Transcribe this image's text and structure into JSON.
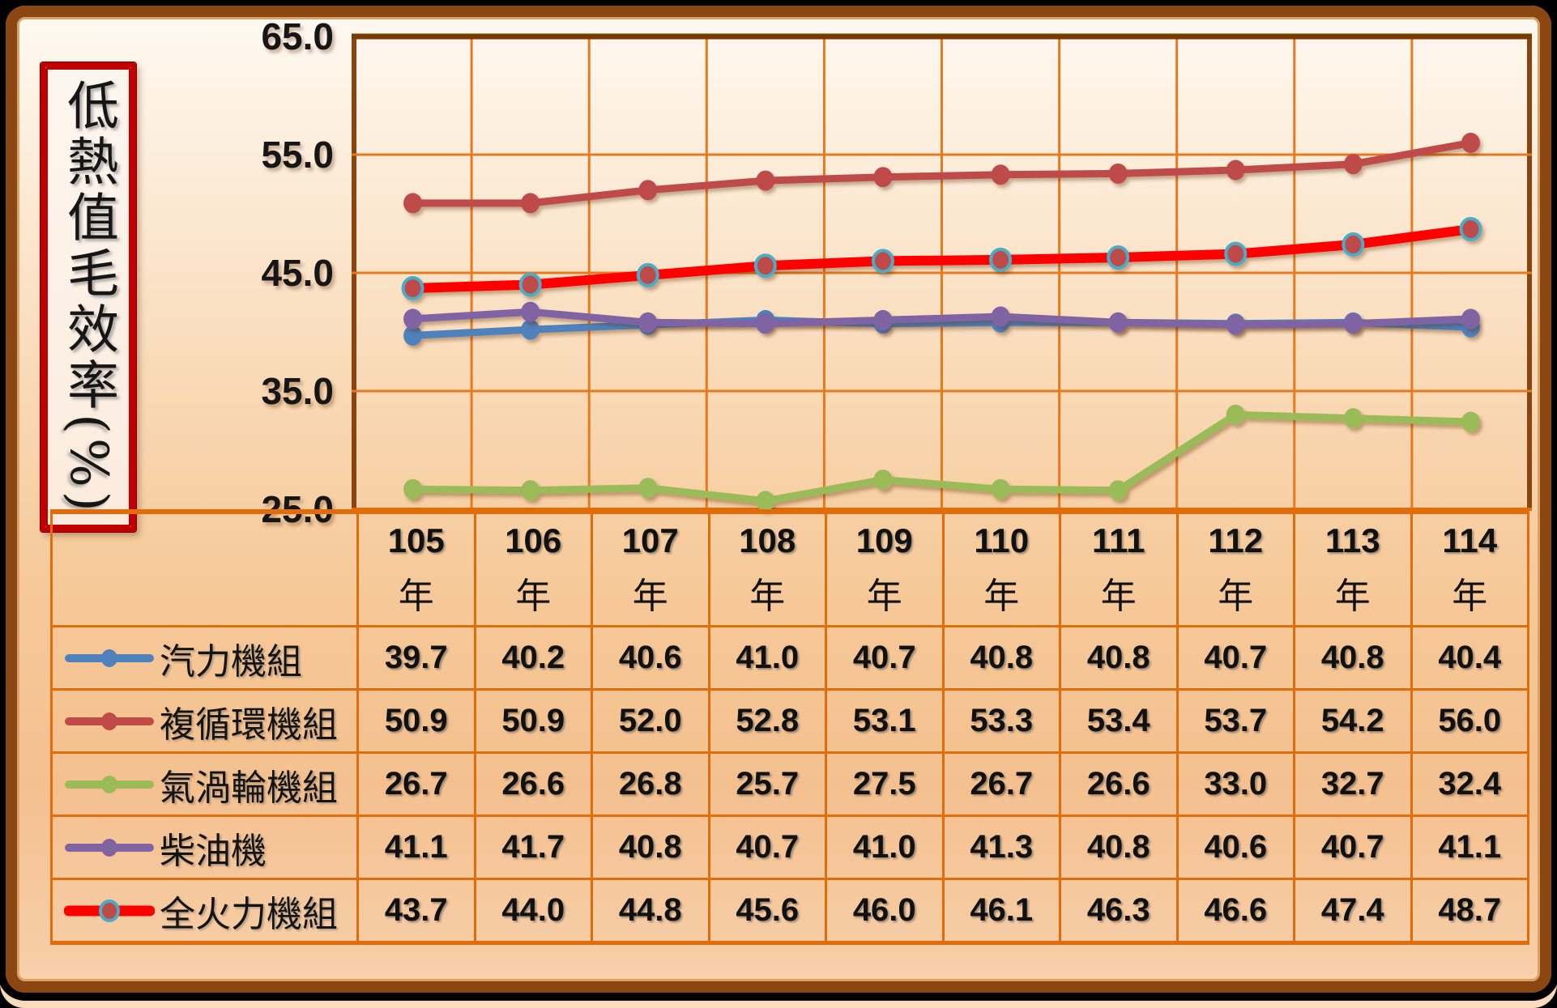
{
  "title": {
    "text": "低熱值毛效率(%)"
  },
  "colors": {
    "grid": "#E8791E",
    "table_border": "#E26B0A",
    "plot_border_dark": "#8A4410",
    "plot_border_top": "#7A3B00",
    "frame": "#8C4611",
    "title_border": "#C00000",
    "text": "#111111"
  },
  "chart_data": {
    "type": "line",
    "title": "",
    "ylabel": "低熱值毛效率(%)",
    "xlabel": "",
    "ylim": [
      25,
      65
    ],
    "yticks": [
      65,
      55,
      45,
      35,
      25
    ],
    "grid": true,
    "legend_position": "table-left-column",
    "categories": [
      "105",
      "106",
      "107",
      "108",
      "109",
      "110",
      "111",
      "112",
      "113",
      "114"
    ],
    "category_suffix": "年",
    "series": [
      {
        "name": "汽力機組",
        "key": "steam-units",
        "color": "#4F81BD",
        "line_width": 9,
        "values": [
          39.7,
          40.2,
          40.6,
          41.0,
          40.7,
          40.8,
          40.8,
          40.7,
          40.8,
          40.4
        ]
      },
      {
        "name": "複循環機組",
        "key": "combined-cycle-units",
        "color": "#BE4B48",
        "line_width": 9,
        "values": [
          50.9,
          50.9,
          52.0,
          52.8,
          53.1,
          53.3,
          53.4,
          53.7,
          54.2,
          56.0
        ]
      },
      {
        "name": "氣渦輪機組",
        "key": "gas-turbine-units",
        "color": "#9BBB59",
        "line_width": 9,
        "values": [
          26.7,
          26.6,
          26.8,
          25.7,
          27.5,
          26.7,
          26.6,
          33.0,
          32.7,
          32.4
        ]
      },
      {
        "name": "柴油機",
        "key": "diesel-units",
        "color": "#8064A2",
        "line_width": 9,
        "values": [
          41.1,
          41.7,
          40.8,
          40.7,
          41.0,
          41.3,
          40.8,
          40.6,
          40.7,
          41.1
        ]
      },
      {
        "name": "全火力機組",
        "key": "all-thermal-units",
        "color": "#FF0000",
        "line_width": 12,
        "marker_fill": "#BE4B48",
        "marker_stroke": "#4BACC6",
        "values": [
          43.7,
          44.0,
          44.8,
          45.6,
          46.0,
          46.1,
          46.3,
          46.6,
          47.4,
          48.7
        ]
      }
    ]
  }
}
